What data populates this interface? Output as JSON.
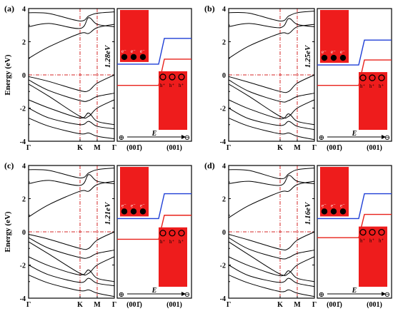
{
  "colors": {
    "band": "#000000",
    "dashed": "#d62828",
    "fill": "#ee1c1c",
    "cbm_line": "#1f3fd6",
    "vbm_line": "#e8211a",
    "frame": "#000000"
  },
  "shared": {
    "ylabel": "Energy (eV)",
    "x_ticks": [
      "Γ",
      "K",
      "M",
      "Γ"
    ],
    "y_ticks": [
      "-4",
      "-2",
      "0",
      "2",
      "4"
    ],
    "right_labels": [
      "(001̄)",
      "(001)"
    ],
    "field_label": "E",
    "plus_symbol": "⊕",
    "minus_symbol": "⊖",
    "electron_label": "e⁻",
    "hole_label": "h⁺"
  },
  "chart_data": [
    {
      "type": "line",
      "panel": "(a)",
      "gap_label": "1.28eV",
      "ylim": [
        -4,
        4
      ],
      "x_ticks": [
        "Γ",
        "K",
        "M",
        "Γ"
      ],
      "ylabel": "Energy (eV)",
      "band_edges": {
        "cbm_left": 0.65,
        "cbm_right": 2.2,
        "vbm_left": -0.63,
        "vbm_right": 0.95
      },
      "x": [
        0,
        0.5,
        1,
        1.5,
        2,
        2.5
      ],
      "bands": [
        [
          3.75,
          3.7,
          3.25,
          3.55,
          3.72,
          3.8
        ],
        [
          2.9,
          3.1,
          2.8,
          3.45,
          3.05,
          2.9
        ],
        [
          1.0,
          1.7,
          2.5,
          2.5,
          2.85,
          3.05
        ],
        [
          -0.1,
          -0.4,
          -0.95,
          -0.95,
          -0.5,
          0.0
        ],
        [
          -0.3,
          -0.95,
          -1.55,
          -1.55,
          -1.3,
          -1.1
        ],
        [
          -0.55,
          -1.3,
          -2.5,
          -2.5,
          -2.0,
          -1.5
        ],
        [
          -1.5,
          -2.0,
          -2.6,
          -2.3,
          -2.8,
          -3.0
        ],
        [
          -2.0,
          -2.6,
          -3.0,
          -2.8,
          -3.1,
          -3.25
        ],
        [
          -2.6,
          -3.1,
          -3.55,
          -3.5,
          -3.7,
          -3.85
        ]
      ]
    },
    {
      "type": "line",
      "panel": "(b)",
      "gap_label": "1.25eV",
      "ylim": [
        -4,
        4
      ],
      "x_ticks": [
        "Γ",
        "K",
        "M",
        "Γ"
      ],
      "ylabel": "",
      "band_edges": {
        "cbm_left": 0.6,
        "cbm_right": 2.1,
        "vbm_left": -0.63,
        "vbm_right": 0.9
      },
      "x": [
        0,
        0.5,
        1,
        1.5,
        2,
        2.5
      ],
      "bands": [
        [
          3.75,
          3.72,
          3.25,
          3.55,
          3.75,
          3.85
        ],
        [
          2.9,
          3.1,
          2.85,
          3.4,
          3.05,
          2.9
        ],
        [
          1.0,
          1.75,
          2.5,
          2.5,
          2.9,
          3.05
        ],
        [
          -0.1,
          -0.45,
          -1.0,
          -1.0,
          -0.5,
          0.0
        ],
        [
          -0.3,
          -1.0,
          -1.6,
          -1.55,
          -1.3,
          -1.1
        ],
        [
          -0.55,
          -1.3,
          -2.5,
          -2.5,
          -2.0,
          -1.5
        ],
        [
          -1.5,
          -2.05,
          -2.65,
          -2.35,
          -2.8,
          -3.0
        ],
        [
          -2.0,
          -2.65,
          -3.05,
          -2.8,
          -3.1,
          -3.3
        ],
        [
          -2.6,
          -3.1,
          -3.55,
          -3.5,
          -3.7,
          -3.9
        ]
      ]
    },
    {
      "type": "line",
      "panel": "(c)",
      "gap_label": "1.21eV",
      "ylim": [
        -4,
        4
      ],
      "x_ticks": [
        "Γ",
        "K",
        "M",
        "Γ"
      ],
      "ylabel": "Energy (eV)",
      "band_edges": {
        "cbm_left": 0.8,
        "cbm_right": 2.3,
        "vbm_left": -0.45,
        "vbm_right": 1.0
      },
      "x": [
        0,
        0.5,
        1,
        1.5,
        2,
        2.5
      ],
      "bands": [
        [
          3.75,
          3.7,
          3.25,
          3.55,
          3.75,
          3.85
        ],
        [
          2.9,
          3.1,
          2.8,
          3.45,
          3.05,
          2.9
        ],
        [
          0.9,
          1.65,
          2.45,
          2.45,
          2.85,
          3.05
        ],
        [
          -0.15,
          -0.45,
          -1.0,
          -1.0,
          -0.5,
          0.0
        ],
        [
          -0.35,
          -1.0,
          -1.55,
          -1.55,
          -1.3,
          -1.1
        ],
        [
          -0.6,
          -1.35,
          -2.5,
          -2.5,
          -2.0,
          -1.5
        ],
        [
          -1.5,
          -2.05,
          -2.6,
          -2.3,
          -2.8,
          -3.0
        ],
        [
          -2.0,
          -2.6,
          -3.05,
          -2.8,
          -3.1,
          -3.25
        ],
        [
          -2.6,
          -3.1,
          -3.55,
          -3.5,
          -3.7,
          -3.9
        ]
      ]
    },
    {
      "type": "line",
      "panel": "(d)",
      "gap_label": "1.16eV",
      "ylim": [
        -4,
        4
      ],
      "x_ticks": [
        "Γ",
        "K",
        "M",
        "Γ"
      ],
      "ylabel": "",
      "band_edges": {
        "cbm_left": 0.8,
        "cbm_right": 2.3,
        "vbm_left": -0.35,
        "vbm_right": 1.05
      },
      "x": [
        0,
        0.5,
        1,
        1.5,
        2,
        2.5
      ],
      "bands": [
        [
          3.75,
          3.7,
          3.2,
          3.5,
          3.75,
          3.85
        ],
        [
          2.9,
          3.05,
          2.8,
          3.4,
          3.05,
          2.9
        ],
        [
          0.85,
          1.6,
          2.4,
          2.45,
          2.85,
          3.05
        ],
        [
          -0.15,
          -0.5,
          -1.05,
          -1.0,
          -0.5,
          0.0
        ],
        [
          -0.35,
          -1.05,
          -1.6,
          -1.55,
          -1.3,
          -1.1
        ],
        [
          -0.6,
          -1.4,
          -2.55,
          -2.5,
          -2.0,
          -1.5
        ],
        [
          -1.5,
          -2.05,
          -2.65,
          -2.35,
          -2.8,
          -3.0
        ],
        [
          -2.0,
          -2.65,
          -3.05,
          -2.8,
          -3.1,
          -3.3
        ],
        [
          -2.6,
          -3.1,
          -3.6,
          -3.5,
          -3.7,
          -3.9
        ]
      ]
    }
  ]
}
